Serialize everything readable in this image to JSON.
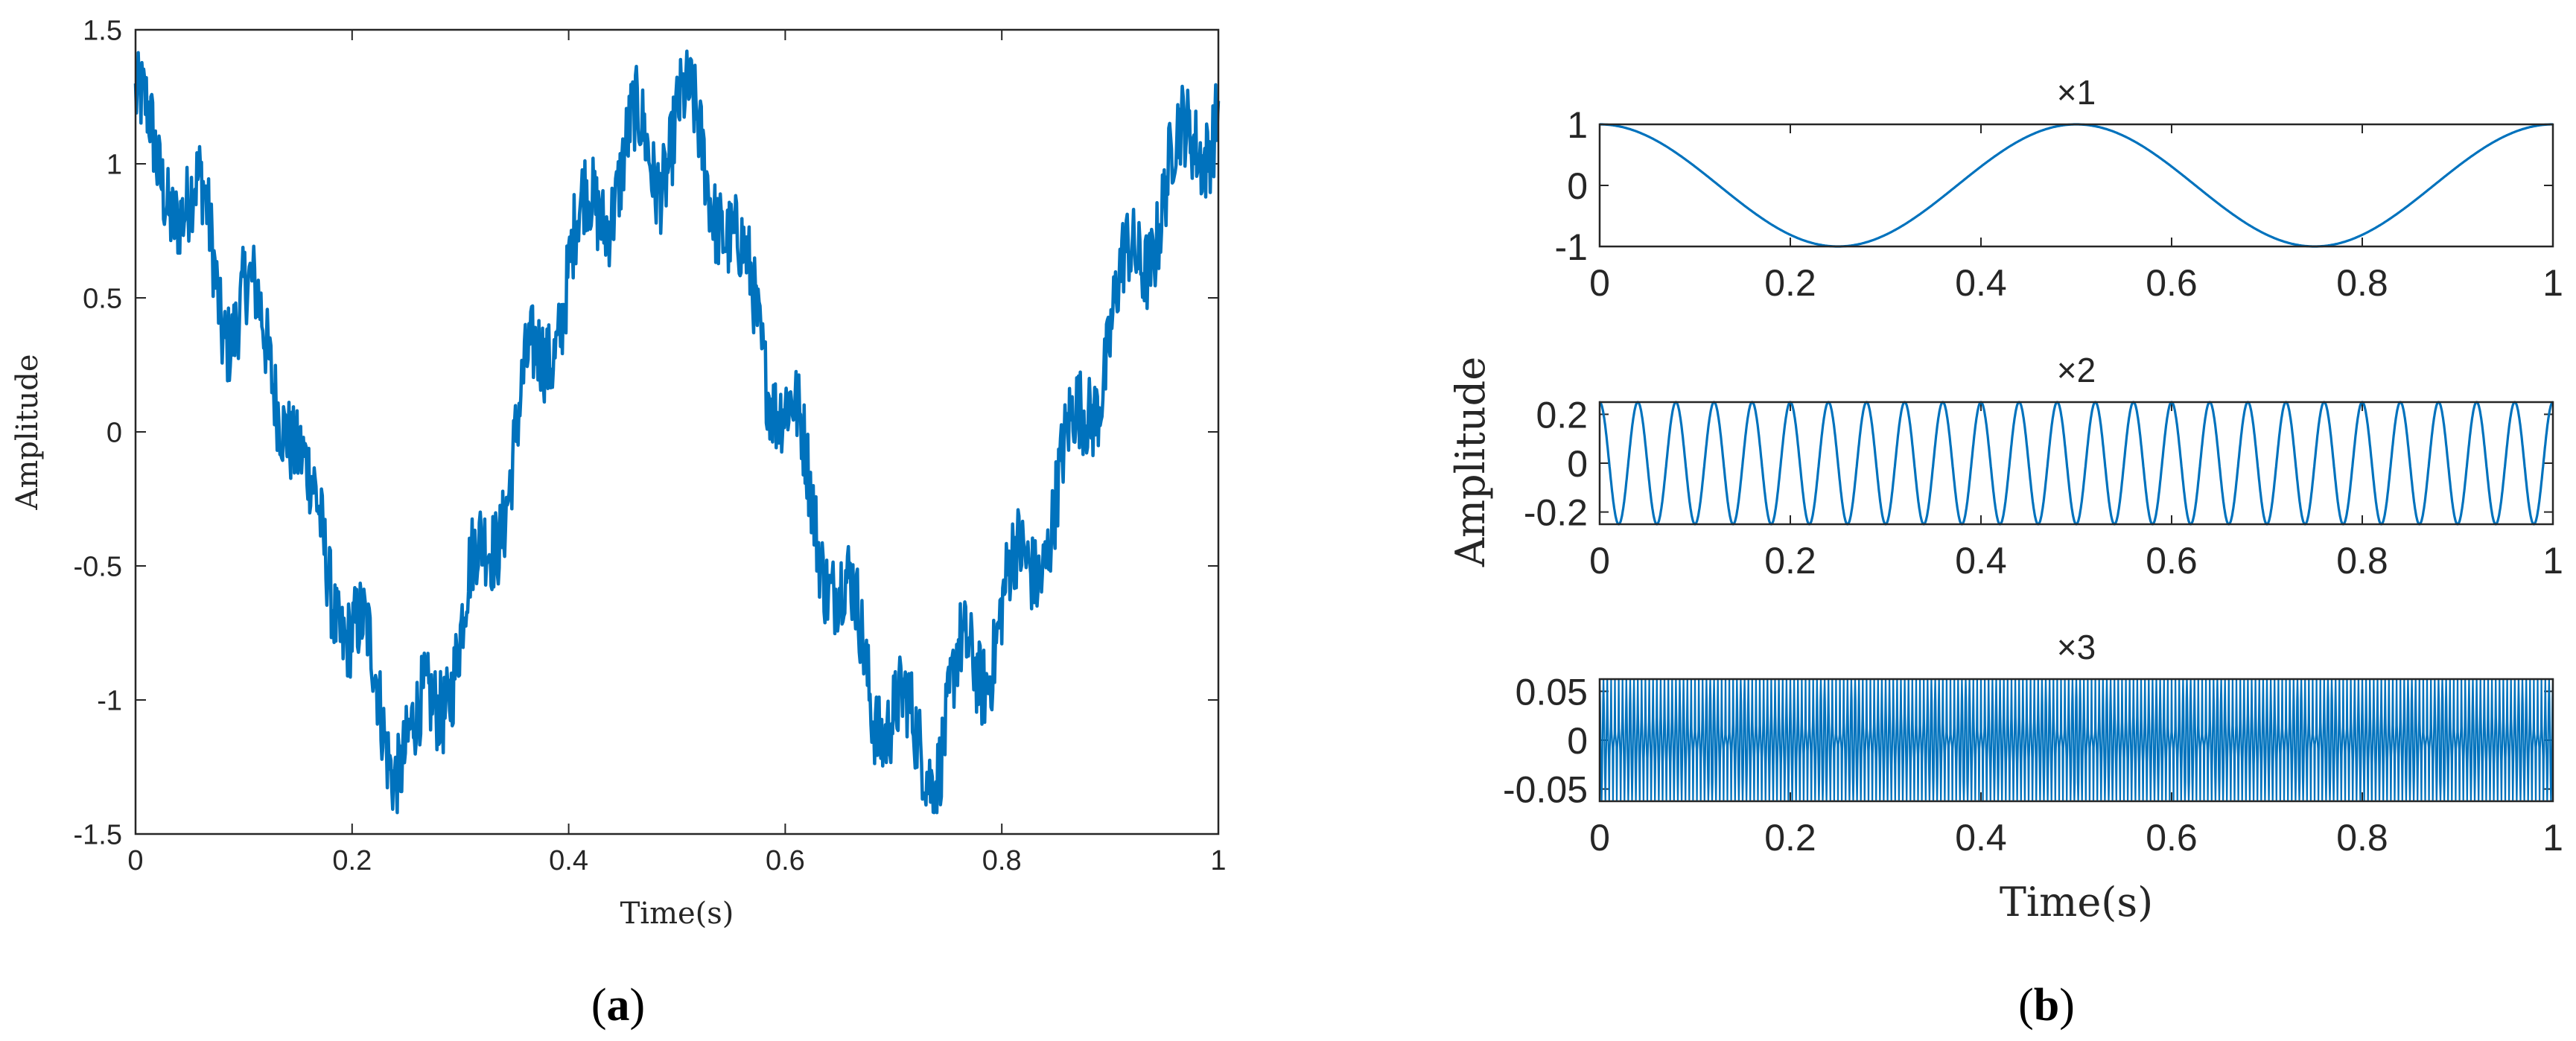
{
  "panel_a": {
    "label_open": "(",
    "label_letter": "a",
    "label_close": ")",
    "xlabel": "Time(s)",
    "ylabel": "Amplitude"
  },
  "panel_b": {
    "label_open": "(",
    "label_letter": "b",
    "label_close": ")",
    "xlabel": "Time(s)",
    "ylabel": "Amplitude"
  },
  "colors": {
    "line": "#0072BD",
    "axis": "#262626"
  },
  "chart_data": [
    {
      "type": "line",
      "panel": "a",
      "title": "",
      "xlabel": "Time(s)",
      "ylabel": "Amplitude",
      "xlim": [
        0,
        1
      ],
      "ylim": [
        -1.5,
        1.5
      ],
      "xticks": [
        0,
        0.2,
        0.4,
        0.6,
        0.8,
        1
      ],
      "xticklabels": [
        "0",
        "0.2",
        "0.4",
        "0.6",
        "0.8",
        "1"
      ],
      "yticks": [
        1.5,
        1,
        0.5,
        0,
        -0.5,
        -1,
        -1.5
      ],
      "yticklabels": [
        "1.5",
        "1",
        "0.5",
        "0",
        "-0.5",
        "-1",
        "-1.5"
      ],
      "grid": false,
      "series": [
        {
          "x": [
            0,
            0.02,
            0.04,
            0.06,
            0.08,
            0.1,
            0.12,
            0.14,
            0.16,
            0.18,
            0.2,
            0.22,
            0.24,
            0.26,
            0.28,
            0.3,
            0.32,
            0.34,
            0.36,
            0.38,
            0.4,
            0.42,
            0.44,
            0.46,
            0.48,
            0.5,
            0.52,
            0.54,
            0.56,
            0.58,
            0.6,
            0.62,
            0.64,
            0.66,
            0.68,
            0.7,
            0.72,
            0.74,
            0.76,
            0.78,
            0.8,
            0.82,
            0.84,
            0.86,
            0.88,
            0.9,
            0.92,
            0.94,
            0.96,
            0.98,
            1
          ],
          "y": [
            1.25,
            0.9,
            0.95,
            0.8,
            0.45,
            0.55,
            0.25,
            0.15,
            -0.3,
            -0.5,
            -0.75,
            -0.95,
            -1.15,
            -1.2,
            -0.95,
            -0.75,
            -0.5,
            -0.2,
            0.1,
            0.35,
            0.6,
            0.8,
            0.95,
            1.05,
            1.0,
            1.2,
            1.05,
            0.9,
            0.55,
            0.35,
            0.1,
            -0.2,
            -0.45,
            -0.7,
            -0.95,
            -1.05,
            -1.2,
            -1.15,
            -0.95,
            -0.85,
            -0.65,
            -0.55,
            -0.35,
            -0.15,
            0.15,
            0.35,
            0.6,
            0.8,
            0.95,
            1.15,
            1.2
          ]
        }
      ]
    },
    {
      "type": "line",
      "panel": "b",
      "title": "×1",
      "xlim": [
        0,
        1
      ],
      "ylim": [
        -1,
        1
      ],
      "xticks": [
        0,
        0.2,
        0.4,
        0.6,
        0.8,
        1
      ],
      "xticklabels": [
        "0",
        "0.2",
        "0.4",
        "0.6",
        "0.8",
        "1"
      ],
      "yticks": [
        1,
        0,
        -1
      ],
      "yticklabels": [
        "1",
        "0",
        "-1"
      ],
      "grid": false,
      "series": [
        {
          "x": [
            0,
            0.05,
            0.1,
            0.15,
            0.2,
            0.25,
            0.3,
            0.35,
            0.4,
            0.45,
            0.5,
            0.55,
            0.6,
            0.65,
            0.7,
            0.75,
            0.8,
            0.85,
            0.9,
            0.95,
            1
          ],
          "y": [
            1,
            0.81,
            0.31,
            -0.31,
            -0.81,
            -1,
            -0.81,
            -0.31,
            0.31,
            0.81,
            1,
            0.81,
            0.31,
            -0.31,
            -0.81,
            -1,
            -0.81,
            -0.31,
            0.31,
            0.81,
            1
          ]
        }
      ]
    },
    {
      "type": "line",
      "panel": "b",
      "title": "×2",
      "xlim": [
        0,
        1
      ],
      "ylim": [
        -0.25,
        0.25
      ],
      "xticks": [
        0,
        0.2,
        0.4,
        0.6,
        0.8,
        1
      ],
      "xticklabels": [
        "0",
        "0.2",
        "0.4",
        "0.6",
        "0.8",
        "1"
      ],
      "yticks": [
        0.2,
        0,
        -0.2
      ],
      "yticklabels": [
        "0.2",
        "0",
        "-0.2"
      ],
      "grid": false,
      "series": [
        {
          "x": [
            0,
            0.02,
            0.04,
            0.06,
            0.08,
            0.1,
            0.12,
            0.14,
            0.16,
            0.18,
            0.2,
            0.22,
            0.24,
            0.26,
            0.28,
            0.3,
            0.32,
            0.34,
            0.36,
            0.38,
            0.4,
            0.42,
            0.44,
            0.46,
            0.48,
            0.5,
            0.52,
            0.54,
            0.56,
            0.58,
            0.6,
            0.62,
            0.64,
            0.66,
            0.68,
            0.7,
            0.72,
            0.74,
            0.76,
            0.78,
            0.8,
            0.82,
            0.84,
            0.86,
            0.88,
            0.9,
            0.92,
            0.94,
            0.96,
            0.98,
            1
          ],
          "y": [
            0.25,
            -0.25,
            0.25,
            -0.25,
            0.25,
            -0.25,
            0.25,
            -0.25,
            0.25,
            -0.25,
            0.25,
            -0.25,
            0.25,
            -0.25,
            0.25,
            -0.25,
            0.25,
            -0.25,
            0.25,
            -0.25,
            0.25,
            -0.25,
            0.25,
            -0.25,
            0.25,
            -0.25,
            0.25,
            -0.25,
            0.25,
            -0.25,
            0.25,
            -0.25,
            0.25,
            -0.25,
            0.25,
            -0.25,
            0.25,
            -0.25,
            0.25,
            -0.25,
            0.25,
            -0.25,
            0.25,
            -0.25,
            0.25,
            -0.25,
            0.25,
            -0.25,
            0.25,
            -0.25,
            0.25
          ]
        }
      ]
    },
    {
      "type": "line",
      "panel": "b",
      "title": "×3",
      "xlim": [
        0,
        1
      ],
      "ylim": [
        -0.0625,
        0.0625
      ],
      "xticks": [
        0,
        0.2,
        0.4,
        0.6,
        0.8,
        1
      ],
      "xticklabels": [
        "0",
        "0.2",
        "0.4",
        "0.6",
        "0.8",
        "1"
      ],
      "yticks": [
        0.05,
        0,
        -0.05
      ],
      "yticklabels": [
        "0.05",
        "0",
        "-0.05"
      ],
      "grid": false,
      "series": [
        {
          "frequency_hz": 250,
          "amplitude": 0.0625,
          "x": [
            0,
            1
          ],
          "y": [
            0.0625,
            -0.0625
          ]
        }
      ]
    }
  ]
}
